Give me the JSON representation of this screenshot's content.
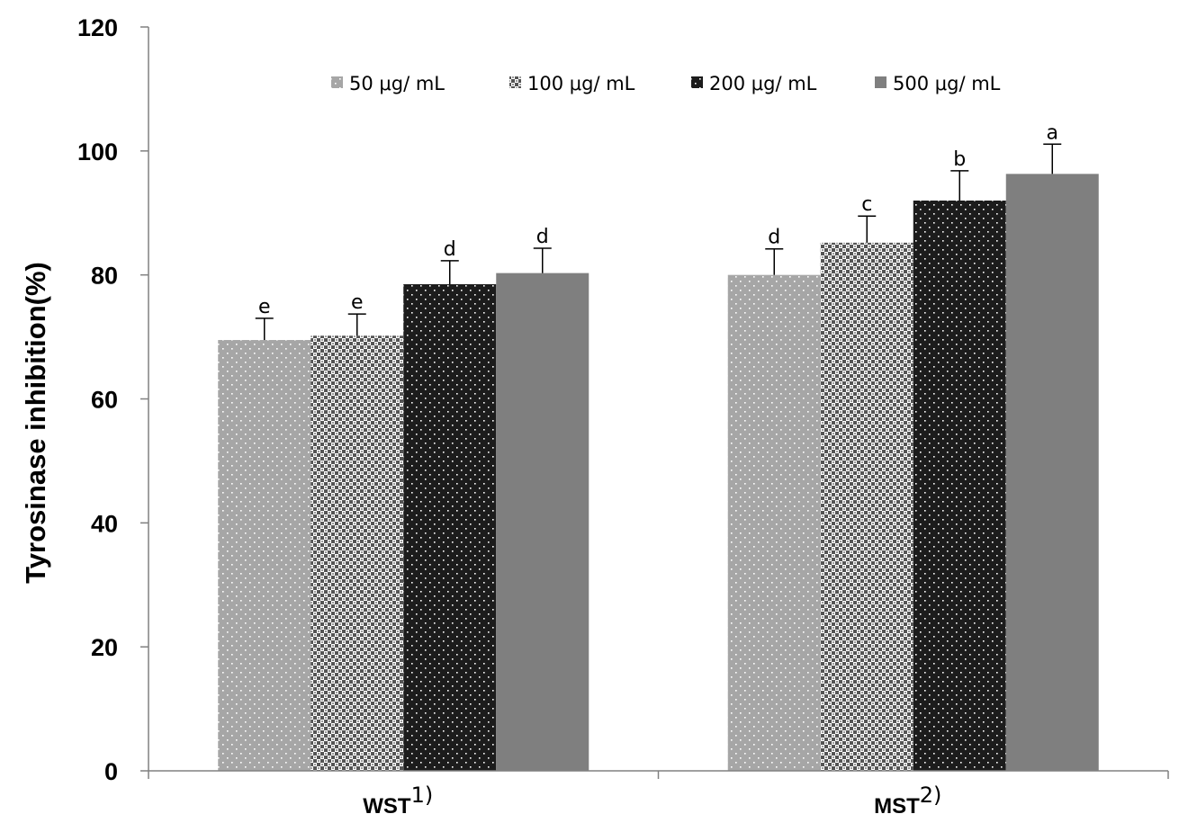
{
  "chart_data": {
    "type": "bar",
    "title": "",
    "ylabel": "Tyrosinase inhibition(%)",
    "xlabel": "",
    "ylim": [
      0,
      120
    ],
    "yticks": [
      "0",
      "20",
      "40",
      "60",
      "80",
      "100",
      "120"
    ],
    "categories": [
      {
        "name": "WST",
        "sup": "1)"
      },
      {
        "name": "MST",
        "sup": "2)"
      }
    ],
    "legend_position": "top",
    "series": [
      {
        "name": "50 μg/ mL",
        "pattern": "light-dots",
        "color": "#a6a6a6",
        "values": [
          69.5,
          80.0
        ],
        "errors": [
          3.5,
          4.2
        ],
        "labels": [
          "e",
          "d"
        ]
      },
      {
        "name": "100 μg/ mL",
        "pattern": "checker",
        "color": "#6e6e6e",
        "values": [
          70.2,
          85.2
        ],
        "errors": [
          3.5,
          4.3
        ],
        "labels": [
          "e",
          "c"
        ]
      },
      {
        "name": "200 μg/ mL",
        "pattern": "dark-dots",
        "color": "#1c1c1c",
        "values": [
          78.5,
          92.0
        ],
        "errors": [
          3.8,
          4.8
        ],
        "labels": [
          "d",
          "b"
        ]
      },
      {
        "name": "500 μg/ mL",
        "pattern": "solid",
        "color": "#7f7f7f",
        "values": [
          80.3,
          96.3
        ],
        "errors": [
          4.0,
          4.8
        ],
        "labels": [
          "d",
          "a"
        ]
      }
    ]
  }
}
